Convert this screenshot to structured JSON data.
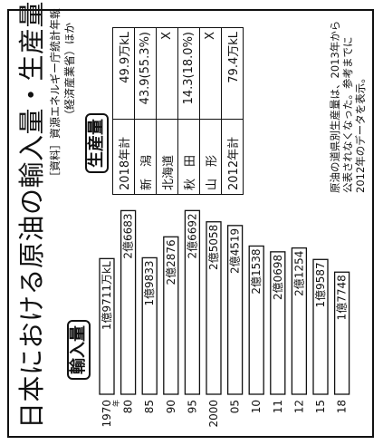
{
  "title": "日本における原油の輸入量・生産量",
  "source_line1": "［資料］資源エネルギー庁統計年報",
  "source_line2": "（経済産業省）ほか",
  "import_label": "輸入量",
  "production_label": "生産量",
  "year_suffix": "年",
  "note": "原油の道県別生産量は、2013年から公表されなくなった。参考までに2012年のデータを表示。",
  "production_table": [
    {
      "name": "2018年計",
      "value": "49.9万kL"
    },
    {
      "name": "新　潟",
      "value": "43.9(55.3%)"
    },
    {
      "name": "北海道",
      "value": "X"
    },
    {
      "name": "秋　田",
      "value": "14.3(18.0%)"
    },
    {
      "name": "山　形",
      "value": "X"
    },
    {
      "name": "2012年計",
      "value": "79.4万kL"
    }
  ],
  "chart_data": {
    "type": "bar",
    "orientation": "horizontal",
    "title": "輸入量",
    "unit": "万kL",
    "categories": [
      "1970",
      "80",
      "85",
      "90",
      "95",
      "2000",
      "05",
      "10",
      "11",
      "12",
      "15",
      "18"
    ],
    "values": [
      19711,
      26683,
      19833,
      22876,
      26692,
      25058,
      24519,
      21538,
      20698,
      21254,
      19587,
      17748
    ],
    "value_labels": [
      "1億9711万kL",
      "2億6683",
      "1億9833",
      "2億2876",
      "2億6692",
      "2億5058",
      "2億4519",
      "2億1538",
      "2億0698",
      "2億1254",
      "1億9587",
      "1億7748"
    ],
    "xlim": [
      0,
      27000
    ]
  }
}
